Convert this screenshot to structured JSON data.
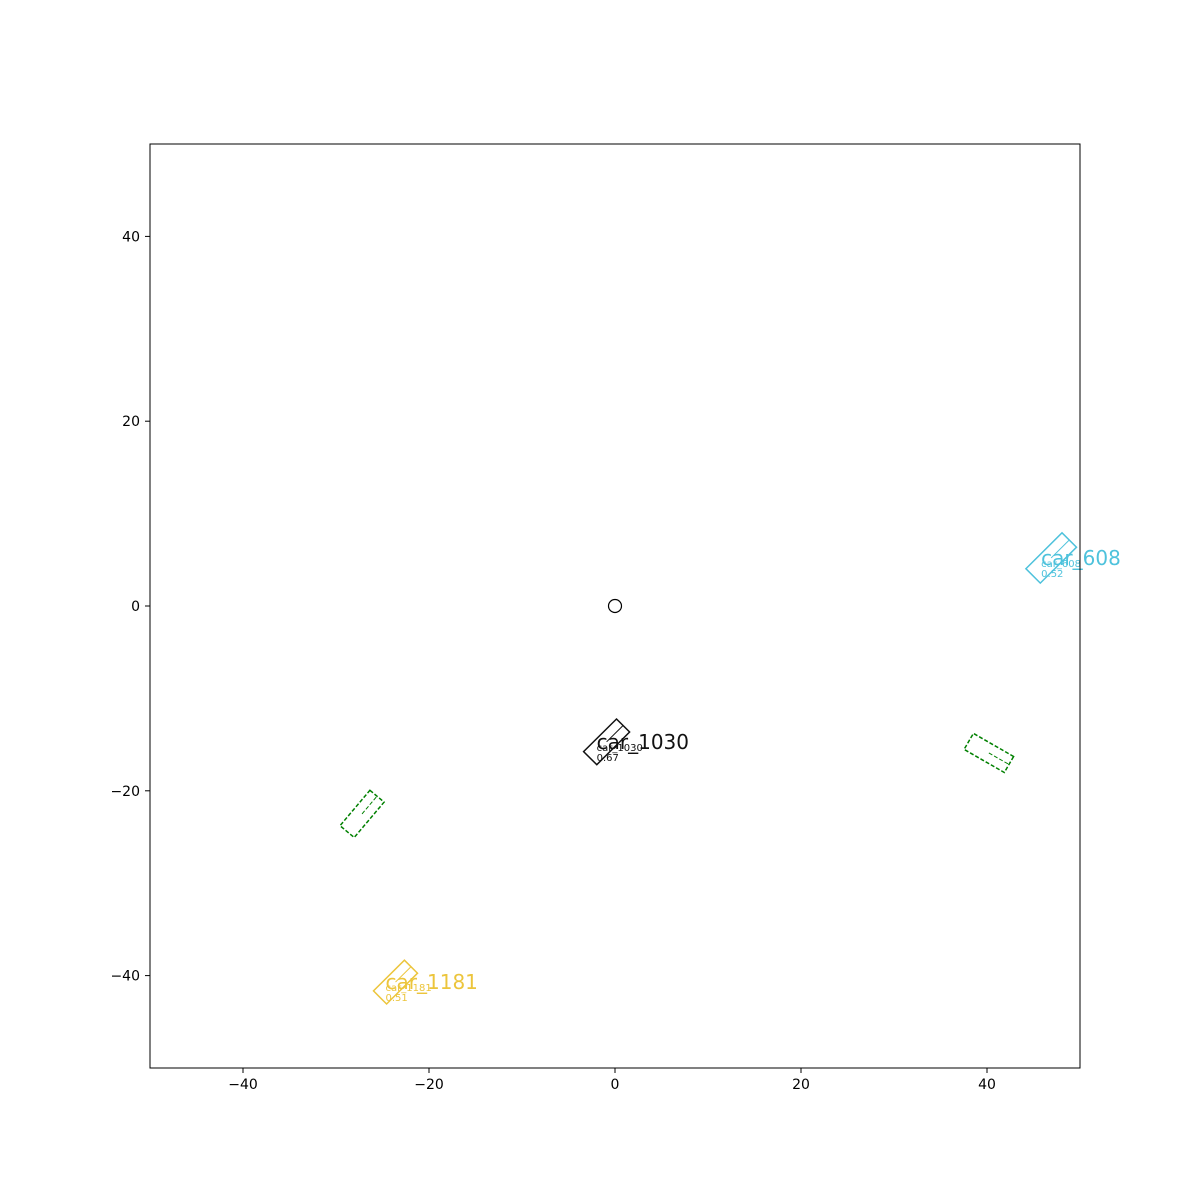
{
  "chart_data": {
    "type": "scatter",
    "title": "",
    "xlabel": "",
    "ylabel": "",
    "xlim": [
      -50,
      50
    ],
    "ylim": [
      -50,
      50
    ],
    "grid": false,
    "legend": "none",
    "x_ticks": [
      -40,
      -20,
      0,
      20,
      40
    ],
    "y_ticks": [
      -40,
      -20,
      0,
      20,
      40
    ],
    "x_tick_labels": [
      "−40",
      "−20",
      "0",
      "20",
      "40"
    ],
    "y_tick_labels": [
      "−40",
      "−20",
      "0",
      "20",
      "40"
    ],
    "ego": {
      "x": 0,
      "y": 0,
      "marker": "circle"
    },
    "predicted_boxes": [
      {
        "name": "car_1030",
        "color": "#111111",
        "cx": -0.9,
        "cy": -14.7,
        "length": 5.0,
        "width": 2.0,
        "heading_deg": 45,
        "score": "0.67",
        "small_label": "car_1030"
      },
      {
        "name": "car_608",
        "color": "#4ec2dc",
        "cx": 46.9,
        "cy": 5.2,
        "length": 5.5,
        "width": 2.2,
        "heading_deg": 45,
        "score": "0.52",
        "small_label": "car_608"
      },
      {
        "name": "car_1181",
        "color": "#ecc53c",
        "cx": -23.6,
        "cy": -40.7,
        "length": 4.7,
        "width": 2.0,
        "heading_deg": 45,
        "score": "0.51",
        "small_label": "car_1181"
      }
    ],
    "ground_truth_boxes": [
      {
        "color": "#008000",
        "style": "dashed",
        "cx": -27.2,
        "cy": -22.5,
        "length": 5.0,
        "width": 2.0,
        "heading_deg": 50
      },
      {
        "color": "#008000",
        "style": "dashed",
        "cx": 40.2,
        "cy": -15.9,
        "length": 5.0,
        "width": 2.0,
        "heading_deg": -30
      }
    ]
  }
}
